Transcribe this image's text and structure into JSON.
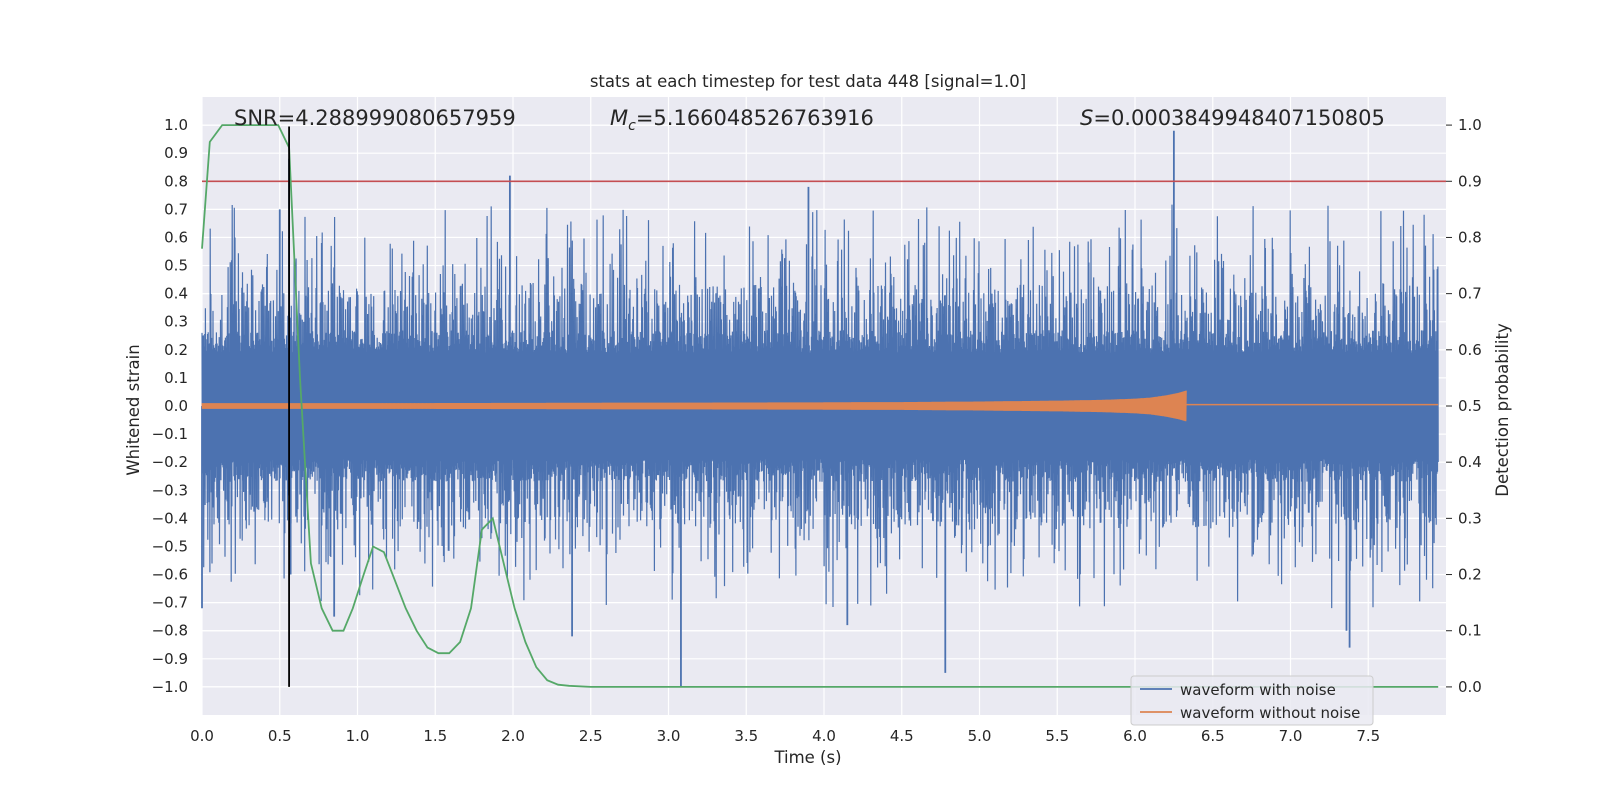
{
  "chart_data": {
    "type": "line",
    "title": "stats at each timestep for test data 448 [signal=1.0]",
    "xlabel": "Time (s)",
    "ylabel_left": "Whitened strain",
    "ylabel_right": "Detection probability",
    "xlim": [
      0.0,
      8.0
    ],
    "ylim_left": [
      -1.1,
      1.1
    ],
    "ylim_right": [
      -0.05,
      1.05
    ],
    "xticks": [
      0.0,
      0.5,
      1.0,
      1.5,
      2.0,
      2.5,
      3.0,
      3.5,
      4.0,
      4.5,
      5.0,
      5.5,
      6.0,
      6.5,
      7.0,
      7.5
    ],
    "xtick_labels": [
      "0.0",
      "0.5",
      "1.0",
      "1.5",
      "2.0",
      "2.5",
      "3.0",
      "3.5",
      "4.0",
      "4.5",
      "5.0",
      "5.5",
      "6.0",
      "6.5",
      "7.0",
      "7.5"
    ],
    "yticks_left": [
      1.0,
      0.9,
      0.8,
      0.7,
      0.6,
      0.5,
      0.4,
      0.3,
      0.2,
      0.1,
      0.0,
      -0.1,
      -0.2,
      -0.3,
      -0.4,
      -0.5,
      -0.6,
      -0.7,
      -0.8,
      -0.9,
      -1.0
    ],
    "ytick_labels_left": [
      "1.0",
      "0.9",
      "0.8",
      "0.7",
      "0.6",
      "0.5",
      "0.4",
      "0.3",
      "0.2",
      "0.1",
      "0.0",
      "−0.1",
      "−0.2",
      "−0.3",
      "−0.4",
      "−0.5",
      "−0.6",
      "−0.7",
      "−0.8",
      "−0.9",
      "−1.0"
    ],
    "yticks_right": [
      1.0,
      0.9,
      0.8,
      0.7,
      0.6,
      0.5,
      0.4,
      0.3,
      0.2,
      0.1,
      0.0
    ],
    "ytick_labels_right": [
      "1.0",
      "0.9",
      "0.8",
      "0.7",
      "0.6",
      "0.5",
      "0.4",
      "0.3",
      "0.2",
      "0.1",
      "0.0"
    ],
    "annotations": {
      "snr": "SNR=4.288999080657959",
      "mc_symbol": "M",
      "mc_sub": "c",
      "mc_value": "=5.166048526763916",
      "s_symbol": "S",
      "s_value": "=0.0003849948407150805"
    },
    "threshold_probability": 0.9,
    "vertical_marker_time": 0.56,
    "series": [
      {
        "name": "waveform with noise",
        "color": "#4c72b0",
        "axis": "left",
        "description": "noisy whitened strain, amplitude mostly within ±0.45 with spikes",
        "spikes": [
          {
            "t": 0.0,
            "v": -0.72
          },
          {
            "t": 0.5,
            "v": 0.7
          },
          {
            "t": 0.56,
            "v": 0.88
          },
          {
            "t": 0.57,
            "v": -0.6
          },
          {
            "t": 0.85,
            "v": -0.75
          },
          {
            "t": 1.98,
            "v": 0.82
          },
          {
            "t": 2.38,
            "v": -0.82
          },
          {
            "t": 3.08,
            "v": -1.0
          },
          {
            "t": 3.9,
            "v": 0.78
          },
          {
            "t": 4.15,
            "v": -0.78
          },
          {
            "t": 4.78,
            "v": -0.95
          },
          {
            "t": 6.25,
            "v": 0.98
          },
          {
            "t": 7.38,
            "v": -0.86
          },
          {
            "t": 7.36,
            "v": -0.8
          }
        ]
      },
      {
        "name": "waveform without noise",
        "color": "#dd8452",
        "axis": "left",
        "description": "chirp with growing amplitude ending near 6.33 s",
        "envelope_t": [
          0.0,
          1.0,
          2.0,
          3.0,
          4.0,
          4.5,
          5.0,
          5.5,
          5.8,
          6.0,
          6.1,
          6.2,
          6.28,
          6.33
        ],
        "envelope_amp": [
          0.01,
          0.01,
          0.011,
          0.012,
          0.013,
          0.014,
          0.016,
          0.019,
          0.022,
          0.026,
          0.03,
          0.038,
          0.047,
          0.055
        ]
      },
      {
        "name": "detection probability",
        "color": "#55a868",
        "axis": "right",
        "x": [
          0.0,
          0.05,
          0.13,
          0.22,
          0.31,
          0.4,
          0.49,
          0.56,
          0.63,
          0.7,
          0.77,
          0.84,
          0.91,
          0.97,
          1.04,
          1.1,
          1.17,
          1.24,
          1.31,
          1.38,
          1.45,
          1.52,
          1.59,
          1.66,
          1.73,
          1.8,
          1.87,
          1.94,
          2.01,
          2.08,
          2.15,
          2.22,
          2.29,
          2.36,
          2.5,
          3.0,
          4.0,
          5.0,
          6.0,
          7.0,
          7.95
        ],
        "y": [
          0.78,
          0.97,
          1.0,
          1.0,
          1.0,
          1.0,
          1.0,
          0.96,
          0.55,
          0.22,
          0.14,
          0.1,
          0.1,
          0.14,
          0.2,
          0.25,
          0.24,
          0.19,
          0.14,
          0.1,
          0.07,
          0.06,
          0.06,
          0.08,
          0.14,
          0.28,
          0.3,
          0.22,
          0.14,
          0.08,
          0.035,
          0.012,
          0.004,
          0.002,
          0.0,
          0.0,
          0.0,
          0.0,
          0.0,
          0.0,
          0.0
        ]
      },
      {
        "name": "threshold",
        "color": "#c44e52",
        "axis": "right",
        "x": [
          0.0,
          8.0
        ],
        "y": [
          0.9,
          0.9
        ]
      }
    ],
    "legend": {
      "position": "lower right",
      "entries": [
        {
          "label": "waveform with noise",
          "color": "#4c72b0"
        },
        {
          "label": "waveform without noise",
          "color": "#dd8452"
        }
      ]
    }
  }
}
